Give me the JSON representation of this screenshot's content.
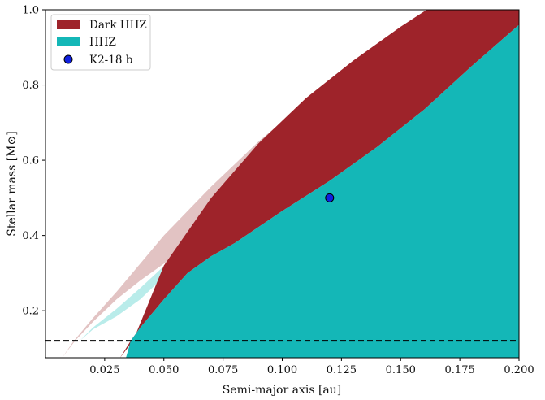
{
  "chart_data": {
    "type": "area",
    "xlabel": "Semi-major axis [au]",
    "ylabel": "Stellar mass [M⊙]",
    "xlim": [
      0.0,
      0.2
    ],
    "ylim": [
      0.075,
      1.0
    ],
    "x_ticks": [
      0.025,
      0.05,
      0.075,
      0.1,
      0.125,
      0.15,
      0.175,
      0.2
    ],
    "x_tick_labels": [
      "0.025",
      "0.050",
      "0.075",
      "0.100",
      "0.125",
      "0.150",
      "0.175",
      "0.200"
    ],
    "y_ticks": [
      0.2,
      0.4,
      0.6,
      0.8,
      1.0
    ],
    "y_tick_labels": [
      "0.2",
      "0.4",
      "0.6",
      "0.8",
      "1.0"
    ],
    "grid": false,
    "legend_position": "top-left",
    "legend": [
      {
        "label": "Dark HHZ",
        "kind": "patch",
        "color": "#9e232a"
      },
      {
        "label": "HHZ",
        "kind": "patch",
        "color": "#14b7b7"
      },
      {
        "label": "K2-18 b",
        "kind": "marker",
        "color": "#1020e0"
      }
    ],
    "regions": [
      {
        "name": "Dark HHZ (faded extension)",
        "color": "#e2c3c3",
        "lower": [
          [
            0.007,
            0.075
          ],
          [
            0.0125,
            0.12
          ],
          [
            0.02,
            0.17
          ],
          [
            0.03,
            0.23
          ],
          [
            0.04,
            0.28
          ],
          [
            0.05,
            0.325
          ],
          [
            0.052,
            0.33
          ]
        ],
        "upper": [
          [
            0.007,
            0.075
          ],
          [
            0.012,
            0.12
          ],
          [
            0.02,
            0.18
          ],
          [
            0.03,
            0.25
          ],
          [
            0.05,
            0.4
          ],
          [
            0.07,
            0.53
          ],
          [
            0.09,
            0.65
          ],
          [
            0.108,
            0.745
          ],
          [
            0.13,
            0.85
          ],
          [
            0.15,
            0.95
          ],
          [
            0.162,
            1.0
          ]
        ]
      },
      {
        "name": "HHZ (faded extension)",
        "color": "#b9ecea",
        "lower": [
          [
            0.0145,
            0.12
          ],
          [
            0.02,
            0.15
          ],
          [
            0.03,
            0.185
          ],
          [
            0.04,
            0.23
          ],
          [
            0.05,
            0.29
          ],
          [
            0.052,
            0.33
          ]
        ],
        "upper": [
          [
            0.0145,
            0.12
          ],
          [
            0.02,
            0.155
          ],
          [
            0.03,
            0.205
          ],
          [
            0.04,
            0.26
          ],
          [
            0.052,
            0.33
          ]
        ]
      },
      {
        "name": "Dark HHZ",
        "color": "#9e232a",
        "lower": [
          [
            0.0315,
            0.075
          ],
          [
            0.036,
            0.12
          ],
          [
            0.04,
            0.155
          ],
          [
            0.05,
            0.23
          ],
          [
            0.06,
            0.3
          ],
          [
            0.07,
            0.345
          ],
          [
            0.08,
            0.38
          ],
          [
            0.1,
            0.465
          ],
          [
            0.12,
            0.545
          ],
          [
            0.14,
            0.635
          ],
          [
            0.16,
            0.735
          ],
          [
            0.18,
            0.85
          ],
          [
            0.2,
            0.96
          ]
        ],
        "upper": [
          [
            0.0315,
            0.075
          ],
          [
            0.037,
            0.12
          ],
          [
            0.05,
            0.32
          ],
          [
            0.07,
            0.5
          ],
          [
            0.09,
            0.645
          ],
          [
            0.11,
            0.765
          ],
          [
            0.13,
            0.865
          ],
          [
            0.15,
            0.955
          ],
          [
            0.161,
            1.0
          ],
          [
            0.2,
            1.0
          ]
        ]
      },
      {
        "name": "HHZ",
        "color": "#14b7b7",
        "lower": [
          [
            0.034,
            0.075
          ],
          [
            0.2,
            0.075
          ]
        ],
        "upper": [
          [
            0.034,
            0.075
          ],
          [
            0.036,
            0.12
          ],
          [
            0.04,
            0.155
          ],
          [
            0.05,
            0.23
          ],
          [
            0.06,
            0.3
          ],
          [
            0.07,
            0.345
          ],
          [
            0.08,
            0.38
          ],
          [
            0.1,
            0.465
          ],
          [
            0.12,
            0.545
          ],
          [
            0.14,
            0.635
          ],
          [
            0.16,
            0.735
          ],
          [
            0.18,
            0.85
          ],
          [
            0.2,
            0.96
          ]
        ]
      }
    ],
    "hline": {
      "y": 0.12,
      "style": "dashed",
      "color": "#000000"
    },
    "points": [
      {
        "label": "K2-18 b",
        "x": 0.12,
        "y": 0.5,
        "color": "#1020e0"
      }
    ]
  }
}
